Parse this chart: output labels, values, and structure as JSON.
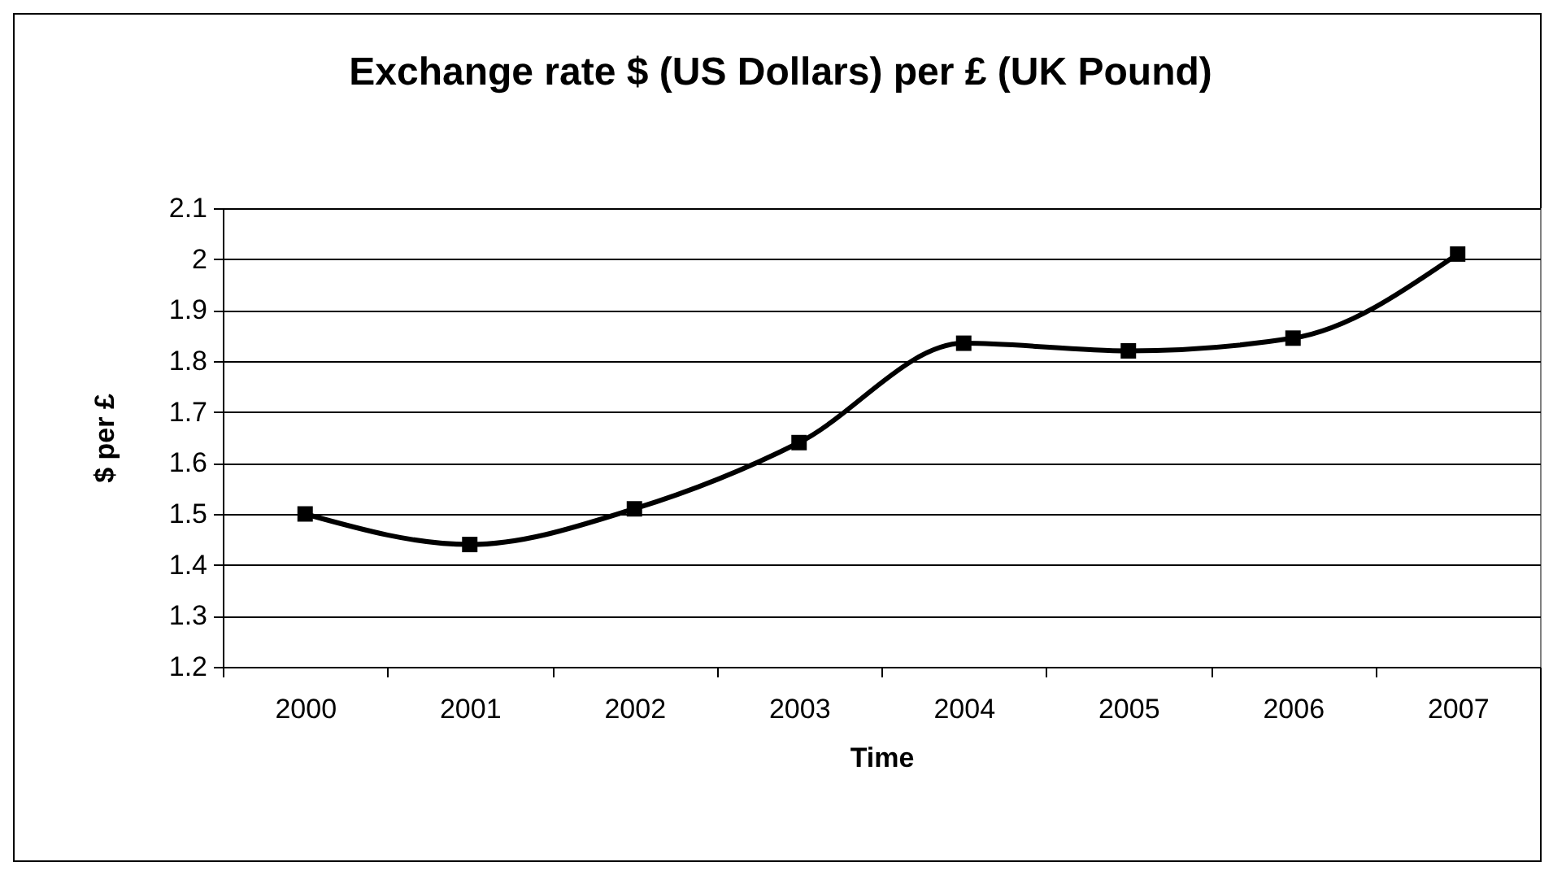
{
  "chart_data": {
    "type": "line",
    "title": "Exchange rate $ (US Dollars) per £ (UK Pound)",
    "xlabel": "Time",
    "ylabel": "$ per £",
    "categories": [
      "2000",
      "2001",
      "2002",
      "2003",
      "2004",
      "2005",
      "2006",
      "2007"
    ],
    "series": [
      {
        "color": "#000000",
        "values": [
          1.5,
          1.44,
          1.51,
          1.64,
          1.835,
          1.82,
          1.845,
          2.01
        ]
      }
    ],
    "ylim": [
      1.2,
      2.1
    ],
    "yticks": [
      1.2,
      1.3,
      1.4,
      1.5,
      1.6,
      1.7,
      1.8,
      1.9,
      2,
      2.1
    ],
    "grid": "y",
    "marker": "square",
    "line_style": "solid",
    "legend": false
  }
}
